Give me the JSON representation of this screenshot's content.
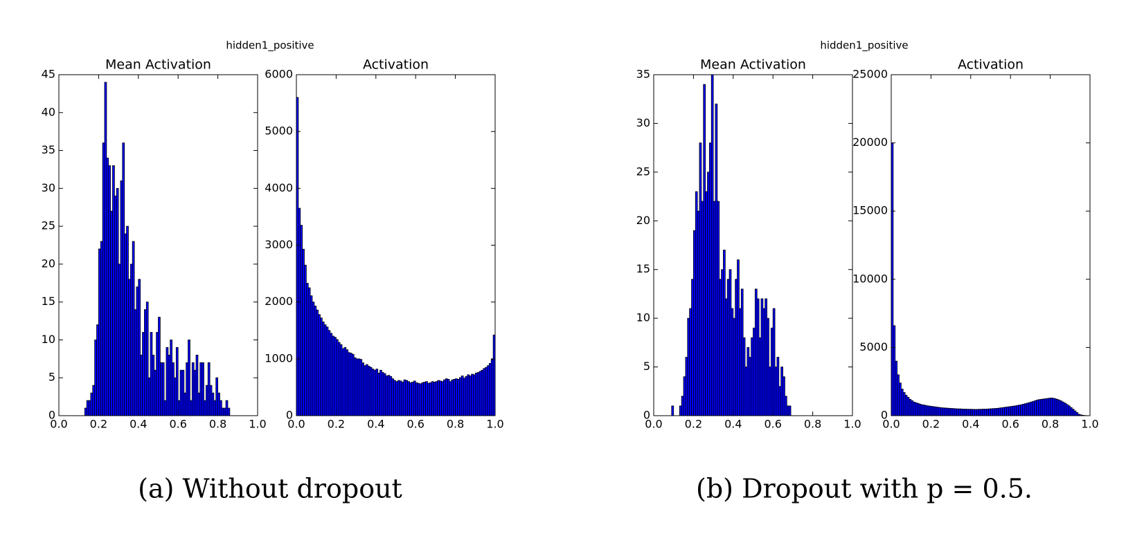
{
  "subfigures": [
    {
      "suptitle": "hidden1_positive",
      "caption": "(a) Without dropout"
    },
    {
      "suptitle": "hidden1_positive",
      "caption": "(b) Dropout with p = 0.5."
    }
  ],
  "chart_data": [
    {
      "type": "histogram",
      "title": "Mean Activation",
      "color": "#0000ff",
      "bins": [
        0.13,
        0.14,
        0.15,
        0.16,
        0.17,
        0.18,
        0.19,
        0.2,
        0.21,
        0.22,
        0.23,
        0.24,
        0.25,
        0.26,
        0.27,
        0.28,
        0.29,
        0.3,
        0.31,
        0.32,
        0.33,
        0.34,
        0.35,
        0.36,
        0.37,
        0.38,
        0.39,
        0.4,
        0.41,
        0.42,
        0.43,
        0.44,
        0.45,
        0.46,
        0.47,
        0.48,
        0.49,
        0.5,
        0.51,
        0.52,
        0.53,
        0.54,
        0.55,
        0.56,
        0.57,
        0.58,
        0.59,
        0.6,
        0.61,
        0.62,
        0.63,
        0.64,
        0.65,
        0.66,
        0.67,
        0.68,
        0.69,
        0.7,
        0.71,
        0.72,
        0.73,
        0.74,
        0.75,
        0.76,
        0.77,
        0.78,
        0.79,
        0.8,
        0.81,
        0.82,
        0.83,
        0.84,
        0.85,
        0.86
      ],
      "counts": [
        1,
        2,
        2,
        3,
        4,
        10,
        12,
        22,
        23,
        36,
        44,
        34,
        33,
        27,
        33,
        29,
        30,
        20,
        31,
        36,
        24,
        25,
        18,
        20,
        23,
        14,
        17,
        18,
        8,
        11,
        14,
        15,
        5,
        11,
        8,
        6,
        11,
        13,
        7,
        7,
        2,
        9,
        8,
        10,
        7,
        5,
        9,
        2,
        6,
        6,
        3,
        7,
        10,
        2,
        7,
        6,
        8,
        3,
        7,
        7,
        2,
        4,
        7,
        4,
        3,
        2,
        5,
        3,
        2,
        1,
        1,
        2,
        1
      ],
      "xlim": [
        0,
        1
      ],
      "ylim": [
        0,
        45
      ],
      "xticks": [
        {
          "value": 0,
          "label": "0.0"
        },
        0.2,
        0.4,
        0.6,
        0.8,
        {
          "value": 1,
          "label": "1.0"
        }
      ],
      "yticks": [
        0,
        5,
        10,
        15,
        20,
        25,
        30,
        35,
        40,
        45
      ]
    },
    {
      "type": "histogram",
      "title": "Activation",
      "color": "#0000ff",
      "bins": [
        0,
        0.01,
        0.02,
        0.03,
        0.04,
        0.05,
        0.06,
        0.07,
        0.08,
        0.09,
        0.1,
        0.11,
        0.12,
        0.13,
        0.14,
        0.15,
        0.16,
        0.17,
        0.18,
        0.19,
        0.2,
        0.21,
        0.22,
        0.23,
        0.24,
        0.25,
        0.26,
        0.27,
        0.28,
        0.29,
        0.3,
        0.31,
        0.32,
        0.33,
        0.34,
        0.35,
        0.36,
        0.37,
        0.38,
        0.39,
        0.4,
        0.41,
        0.42,
        0.43,
        0.44,
        0.45,
        0.46,
        0.47,
        0.48,
        0.49,
        0.5,
        0.51,
        0.52,
        0.53,
        0.54,
        0.55,
        0.56,
        0.57,
        0.58,
        0.59,
        0.6,
        0.61,
        0.62,
        0.63,
        0.64,
        0.65,
        0.66,
        0.67,
        0.68,
        0.69,
        0.7,
        0.71,
        0.72,
        0.73,
        0.74,
        0.75,
        0.76,
        0.77,
        0.78,
        0.79,
        0.8,
        0.81,
        0.82,
        0.83,
        0.84,
        0.85,
        0.86,
        0.87,
        0.88,
        0.89,
        0.9,
        0.91,
        0.92,
        0.93,
        0.94,
        0.95,
        0.96,
        0.97,
        0.98,
        0.99,
        1
      ],
      "counts": [
        5600,
        3650,
        3350,
        2930,
        2650,
        2330,
        2250,
        2110,
        2000,
        1930,
        1860,
        1780,
        1720,
        1650,
        1600,
        1560,
        1500,
        1450,
        1400,
        1380,
        1340,
        1290,
        1250,
        1180,
        1200,
        1160,
        1110,
        1100,
        1080,
        1020,
        1000,
        1000,
        990,
        930,
        880,
        900,
        870,
        850,
        820,
        800,
        820,
        750,
        800,
        760,
        740,
        700,
        710,
        690,
        650,
        620,
        600,
        620,
        610,
        590,
        630,
        620,
        600,
        580,
        590,
        610,
        580,
        570,
        560,
        580,
        590,
        600,
        570,
        580,
        600,
        590,
        600,
        620,
        610,
        600,
        630,
        650,
        640,
        600,
        630,
        640,
        650,
        640,
        670,
        700,
        660,
        690,
        720,
        700,
        730,
        720,
        750,
        760,
        780,
        800,
        830,
        850,
        880,
        920,
        990,
        1420
      ],
      "xlim": [
        0,
        1
      ],
      "ylim": [
        0,
        6000
      ],
      "xticks": [
        {
          "value": 0,
          "label": "0.0"
        },
        0.2,
        0.4,
        0.6,
        0.8,
        {
          "value": 1,
          "label": "1.0"
        }
      ],
      "yticks": [
        0,
        1000,
        2000,
        3000,
        4000,
        5000,
        6000
      ]
    },
    {
      "type": "histogram",
      "title": "Mean Activation",
      "color": "#0000ff",
      "bins": [
        0.09,
        0.1,
        0.11,
        0.12,
        0.13,
        0.14,
        0.15,
        0.16,
        0.17,
        0.18,
        0.19,
        0.2,
        0.21,
        0.22,
        0.23,
        0.24,
        0.25,
        0.26,
        0.27,
        0.28,
        0.29,
        0.3,
        0.31,
        0.32,
        0.33,
        0.34,
        0.35,
        0.36,
        0.37,
        0.38,
        0.39,
        0.4,
        0.41,
        0.42,
        0.43,
        0.44,
        0.45,
        0.46,
        0.47,
        0.48,
        0.49,
        0.5,
        0.51,
        0.52,
        0.53,
        0.54,
        0.55,
        0.56,
        0.57,
        0.58,
        0.59,
        0.6,
        0.61,
        0.62,
        0.63,
        0.64,
        0.65,
        0.66,
        0.67,
        0.68,
        0.69
      ],
      "counts": [
        1,
        0,
        0,
        0,
        1,
        2,
        4,
        6,
        10,
        11,
        14,
        19,
        23,
        21,
        28,
        22,
        34,
        23,
        25,
        28,
        35,
        22,
        32,
        22,
        14,
        15,
        17,
        12,
        14,
        15,
        11,
        10,
        14,
        16,
        11,
        13,
        8,
        5,
        7,
        6,
        8,
        9,
        13,
        12,
        8,
        12,
        11,
        12,
        10,
        5,
        9,
        11,
        5,
        6,
        3,
        5,
        4,
        2,
        1,
        1
      ],
      "xlim": [
        0,
        1
      ],
      "ylim": [
        0,
        35
      ],
      "xticks": [
        {
          "value": 0,
          "label": "0.0"
        },
        0.2,
        0.4,
        0.6,
        0.8,
        {
          "value": 1,
          "label": "1.0"
        }
      ],
      "yticks": [
        0,
        5,
        10,
        15,
        20,
        25,
        30,
        35
      ]
    },
    {
      "type": "histogram",
      "title": "Activation",
      "color": "#0000ff",
      "bins": [
        0,
        0.01,
        0.02,
        0.03,
        0.04,
        0.05,
        0.06,
        0.07,
        0.08,
        0.09,
        0.1,
        0.11,
        0.12,
        0.13,
        0.14,
        0.15,
        0.16,
        0.17,
        0.18,
        0.19,
        0.2,
        0.21,
        0.22,
        0.23,
        0.24,
        0.25,
        0.26,
        0.27,
        0.28,
        0.29,
        0.3,
        0.31,
        0.32,
        0.33,
        0.34,
        0.35,
        0.36,
        0.37,
        0.38,
        0.39,
        0.4,
        0.41,
        0.42,
        0.43,
        0.44,
        0.45,
        0.46,
        0.47,
        0.48,
        0.49,
        0.5,
        0.51,
        0.52,
        0.53,
        0.54,
        0.55,
        0.56,
        0.57,
        0.58,
        0.59,
        0.6,
        0.61,
        0.62,
        0.63,
        0.64,
        0.65,
        0.66,
        0.67,
        0.68,
        0.69,
        0.7,
        0.71,
        0.72,
        0.73,
        0.74,
        0.75,
        0.76,
        0.77,
        0.78,
        0.79,
        0.8,
        0.81,
        0.82,
        0.83,
        0.84,
        0.85,
        0.86,
        0.87,
        0.88,
        0.89,
        0.9,
        0.91,
        0.92,
        0.93,
        0.94,
        0.95,
        0.96,
        0.97,
        0.98,
        0.99,
        1
      ],
      "counts": [
        20000,
        6600,
        4000,
        3000,
        2400,
        1950,
        1700,
        1500,
        1350,
        1200,
        1100,
        1000,
        950,
        900,
        850,
        800,
        780,
        750,
        720,
        700,
        680,
        660,
        640,
        620,
        600,
        580,
        570,
        560,
        550,
        540,
        530,
        520,
        510,
        500,
        500,
        490,
        480,
        480,
        470,
        470,
        470,
        460,
        460,
        460,
        470,
        470,
        480,
        480,
        490,
        500,
        510,
        520,
        530,
        540,
        560,
        580,
        600,
        620,
        640,
        660,
        680,
        700,
        720,
        750,
        780,
        800,
        840,
        880,
        920,
        960,
        1000,
        1050,
        1100,
        1150,
        1180,
        1200,
        1220,
        1240,
        1260,
        1280,
        1300,
        1280,
        1250,
        1200,
        1150,
        1080,
        1000,
        920,
        820,
        720,
        600,
        480,
        350,
        230,
        100,
        60,
        30,
        15,
        5,
        0
      ],
      "xlim": [
        0,
        1
      ],
      "ylim": [
        0,
        25000
      ],
      "xticks": [
        {
          "value": 0,
          "label": "0.0"
        },
        0.2,
        0.4,
        0.6,
        0.8,
        {
          "value": 1,
          "label": "1.0"
        }
      ],
      "yticks": [
        0,
        5000,
        10000,
        15000,
        20000,
        25000
      ]
    }
  ]
}
